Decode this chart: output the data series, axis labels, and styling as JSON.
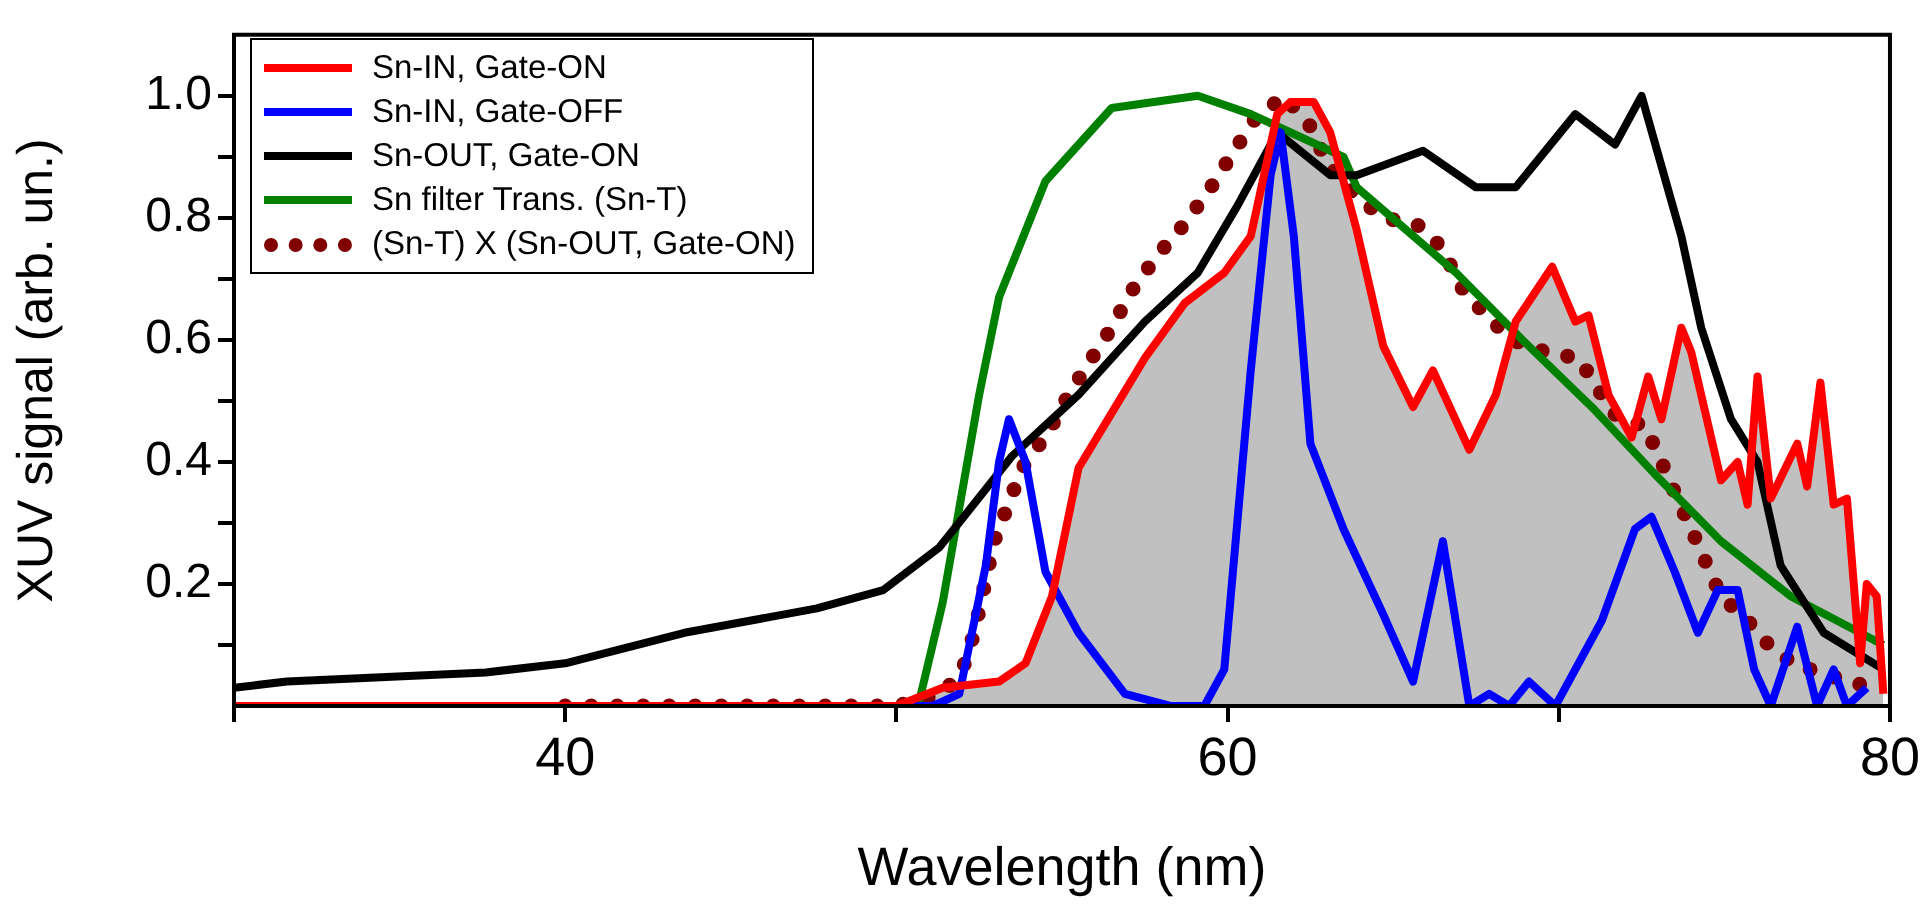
{
  "chart_data": {
    "type": "line",
    "xlabel": "Wavelength (nm)",
    "ylabel": "XUV signal (arb. un.)",
    "xlim": [
      30,
      80
    ],
    "xticks": [
      {
        "value": 30,
        "label": null
      },
      40,
      {
        "value": 50,
        "label": null
      },
      60,
      {
        "value": 70,
        "label": null
      },
      80
    ],
    "ylim": [
      0,
      1.1
    ],
    "yticks": [
      {
        "value": 0.1,
        "label": null
      },
      0.2,
      {
        "value": 0.3,
        "label": null
      },
      0.4,
      {
        "value": 0.5,
        "label": null
      },
      0.6,
      {
        "value": 0.7,
        "label": null
      },
      0.8,
      {
        "value": 0.9,
        "label": null
      },
      {
        "value": 1,
        "label": "1.0"
      }
    ],
    "grid": false,
    "legend": "top left",
    "marker": "none",
    "series": [
      {
        "type": "area",
        "color": "#c0c0c0",
        "x": [
          50,
          51.4,
          53.1,
          53.9,
          54.7,
          55.5,
          56.5,
          57.5,
          58.7,
          59.9,
          60.7,
          61.1,
          61.5,
          61.9,
          62.6,
          63.1,
          63.9,
          64.7,
          65.6,
          66.2,
          67.3,
          68.1,
          68.7,
          69.8,
          70.5,
          70.9,
          71.5,
          72.2,
          72.7,
          73.1,
          73.7,
          74.0,
          74.9,
          75.4,
          75.7,
          76.0,
          76.4,
          77.2,
          77.5,
          77.9,
          78.3,
          78.7,
          79.1,
          79.3,
          79.6,
          79.8
        ],
        "values": [
          0,
          0.03,
          0.04,
          0.07,
          0.18,
          0.39,
          0.48,
          0.57,
          0.66,
          0.71,
          0.77,
          0.87,
          0.97,
          0.99,
          0.99,
          0.94,
          0.78,
          0.59,
          0.49,
          0.55,
          0.42,
          0.51,
          0.63,
          0.72,
          0.63,
          0.64,
          0.51,
          0.44,
          0.54,
          0.47,
          0.62,
          0.58,
          0.37,
          0.4,
          0.33,
          0.54,
          0.34,
          0.43,
          0.36,
          0.53,
          0.33,
          0.34,
          0.07,
          0.2,
          0.18,
          0.02
        ]
      },
      {
        "name": "Sn-IN, Gate-ON",
        "color": "#ff0000",
        "x": [
          30,
          40,
          50,
          51.4,
          53.1,
          53.9,
          54.7,
          55.5,
          56.5,
          57.5,
          58.7,
          59.9,
          60.7,
          61.1,
          61.5,
          61.9,
          62.6,
          63.1,
          63.9,
          64.7,
          65.6,
          66.2,
          67.3,
          68.1,
          68.7,
          69.8,
          70.5,
          70.9,
          71.5,
          72.2,
          72.7,
          73.1,
          73.7,
          74.0,
          74.9,
          75.4,
          75.7,
          76.0,
          76.4,
          77.2,
          77.5,
          77.9,
          78.3,
          78.7,
          79.1,
          79.3,
          79.6,
          79.8
        ],
        "values": [
          0,
          0,
          0,
          0.03,
          0.04,
          0.07,
          0.18,
          0.39,
          0.48,
          0.57,
          0.66,
          0.71,
          0.77,
          0.87,
          0.97,
          0.99,
          0.99,
          0.94,
          0.78,
          0.59,
          0.49,
          0.55,
          0.42,
          0.51,
          0.63,
          0.72,
          0.63,
          0.64,
          0.51,
          0.44,
          0.54,
          0.47,
          0.62,
          0.58,
          0.37,
          0.4,
          0.33,
          0.54,
          0.34,
          0.43,
          0.36,
          0.53,
          0.33,
          0.34,
          0.07,
          0.2,
          0.18,
          0.02
        ]
      },
      {
        "name": "Sn-IN, Gate-OFF",
        "color": "#0000ff",
        "x": [
          30,
          40,
          51.1,
          51.9,
          52.7,
          53.1,
          53.4,
          53.9,
          54.5,
          55.5,
          56.9,
          58.3,
          59.3,
          59.9,
          60.7,
          61.3,
          61.6,
          62.0,
          62.5,
          63.5,
          64.7,
          65.6,
          66.5,
          67.3,
          67.9,
          68.5,
          69.1,
          69.9,
          71.3,
          72.3,
          72.8,
          73.5,
          74.2,
          74.8,
          75.4,
          75.9,
          76.4,
          77.2,
          77.8,
          78.3,
          78.7,
          79.3
        ],
        "values": [
          0,
          0,
          0,
          0.02,
          0.23,
          0.4,
          0.47,
          0.4,
          0.22,
          0.12,
          0.02,
          0,
          0,
          0.06,
          0.55,
          0.87,
          0.94,
          0.77,
          0.43,
          0.29,
          0.15,
          0.04,
          0.27,
          0,
          0.02,
          0,
          0.04,
          0,
          0.14,
          0.29,
          0.31,
          0.22,
          0.12,
          0.19,
          0.19,
          0.06,
          0,
          0.13,
          0,
          0.06,
          0,
          0.03
        ]
      },
      {
        "name": "Sn-OUT, Gate-ON",
        "color": "#000000",
        "x": [
          30,
          31.6,
          37.6,
          40,
          43.6,
          47.6,
          49.6,
          51.3,
          53.5,
          55.5,
          57.5,
          59.1,
          60.3,
          61.5,
          63.1,
          63.9,
          65.9,
          67.5,
          68.7,
          70.5,
          71.7,
          72.5,
          73.7,
          74.3,
          75.2,
          76.0,
          76.7,
          78.0,
          79.8
        ],
        "values": [
          0.03,
          0.04,
          0.055,
          0.07,
          0.12,
          0.16,
          0.19,
          0.26,
          0.41,
          0.51,
          0.63,
          0.71,
          0.82,
          0.94,
          0.87,
          0.87,
          0.91,
          0.85,
          0.85,
          0.97,
          0.92,
          1.0,
          0.77,
          0.62,
          0.47,
          0.4,
          0.23,
          0.12,
          0.06
        ]
      },
      {
        "name": "Sn filter Trans. (Sn-T)",
        "color": "#008000",
        "x": [
          40,
          50,
          50.7,
          51.4,
          52.5,
          53.1,
          54.5,
          56.5,
          59.1,
          60.7,
          63.5,
          63.9,
          66.9,
          68.9,
          71.0,
          72.9,
          74.9,
          77.0,
          79.8
        ],
        "values": [
          0,
          0,
          0.01,
          0.17,
          0.51,
          0.67,
          0.86,
          0.98,
          1.0,
          0.97,
          0.9,
          0.85,
          0.71,
          0.6,
          0.49,
          0.38,
          0.27,
          0.18,
          0.1
        ]
      },
      {
        "name": "(Sn-T) X (Sn-OUT, Gate-ON)",
        "color": "#800000",
        "line_style": "dotted",
        "x": [
          40,
          41,
          42,
          43,
          44,
          45,
          46,
          47,
          48,
          49,
          50,
          51.4,
          52.0,
          52.35,
          52.95,
          53.8,
          54.6,
          55.2,
          55.9,
          56.5,
          57.1,
          57.9,
          58.7,
          59.5,
          60.2,
          60.8,
          61.7,
          62.5,
          63.0,
          63.8,
          64.7,
          65.7,
          66.5,
          67.0,
          67.8,
          68.6,
          69.6,
          70.6,
          71.3,
          71.8,
          72.6,
          73.1,
          73.5,
          74.0,
          74.4,
          74.9,
          75.7,
          76.5,
          77.4,
          77.7,
          78.7,
          79.6
        ],
        "values": [
          0,
          0,
          0,
          0,
          0,
          0,
          0,
          0,
          0,
          0,
          0,
          0.02,
          0.06,
          0.12,
          0.27,
          0.39,
          0.45,
          0.51,
          0.57,
          0.62,
          0.68,
          0.74,
          0.79,
          0.85,
          0.91,
          0.96,
          1.0,
          0.95,
          0.89,
          0.84,
          0.8,
          0.79,
          0.75,
          0.69,
          0.64,
          0.6,
          0.58,
          0.57,
          0.51,
          0.47,
          0.46,
          0.4,
          0.35,
          0.29,
          0.24,
          0.18,
          0.14,
          0.09,
          0.06,
          0.06,
          0.04,
          0.03
        ]
      }
    ]
  }
}
